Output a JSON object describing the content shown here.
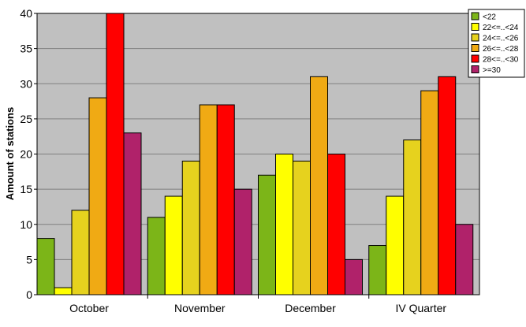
{
  "chart_data": {
    "type": "bar",
    "title": "",
    "xlabel": "",
    "ylabel": "Amount of stations",
    "ylim": [
      0,
      40
    ],
    "yticks": [
      0,
      5,
      10,
      15,
      20,
      25,
      30,
      35,
      40
    ],
    "grid": true,
    "legend_position": "top-right",
    "categories": [
      "October",
      "November",
      "December",
      "IV Quarter"
    ],
    "series": [
      {
        "name": "<22",
        "color": "#7cb518",
        "values": [
          8,
          11,
          17,
          7
        ]
      },
      {
        "name": "22<=..<24",
        "color": "#ffff00",
        "values": [
          1,
          14,
          20,
          14
        ]
      },
      {
        "name": "24<=..<26",
        "color": "#e6d21e",
        "values": [
          12,
          19,
          19,
          22
        ]
      },
      {
        "name": "26<=..<28",
        "color": "#f0aa14",
        "values": [
          28,
          27,
          31,
          29
        ]
      },
      {
        "name": "28<=..<30",
        "color": "#ff0000",
        "values": [
          40,
          27,
          20,
          31
        ]
      },
      {
        "name": ">=30",
        "color": "#b0226a",
        "values": [
          23,
          15,
          5,
          10
        ]
      }
    ],
    "plot_background": "#c0c0c0"
  }
}
